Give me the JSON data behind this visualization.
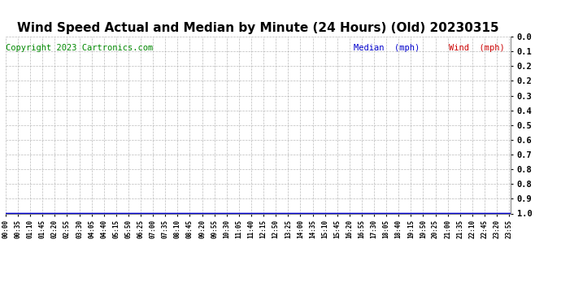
{
  "title": "Wind Speed Actual and Median by Minute (24 Hours) (Old) 20230315",
  "title_fontsize": 11,
  "copyright_text": "Copyright 2023 Cartronics.com",
  "copyright_color": "#008800",
  "copyright_fontsize": 7.5,
  "legend_median_label": "Median  (mph)",
  "legend_wind_label": "Wind  (mph)",
  "legend_median_color": "#0000cc",
  "legend_wind_color": "#cc0000",
  "background_color": "#ffffff",
  "plot_bg_color": "#ffffff",
  "grid_color": "#aaaaaa",
  "ylim": [
    0.0,
    1.0
  ],
  "ytick_labels": [
    "1.0",
    "0.9",
    "0.8",
    "0.8",
    "0.7",
    "0.6",
    "0.5",
    "0.4",
    "0.3",
    "0.2",
    "0.2",
    "0.1",
    "0.0"
  ],
  "wind_line_color": "#0000cc",
  "num_minutes": 1440,
  "tick_every": 35
}
